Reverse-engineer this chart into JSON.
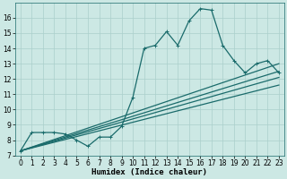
{
  "title": "",
  "xlabel": "Humidex (Indice chaleur)",
  "xlim": [
    -0.5,
    23.5
  ],
  "ylim": [
    7,
    17.0
  ],
  "yticks": [
    7,
    8,
    9,
    10,
    11,
    12,
    13,
    14,
    15,
    16
  ],
  "xticks": [
    0,
    1,
    2,
    3,
    4,
    5,
    6,
    7,
    8,
    9,
    10,
    11,
    12,
    13,
    14,
    15,
    16,
    17,
    18,
    19,
    20,
    21,
    22,
    23
  ],
  "bg_color": "#cce8e4",
  "grid_color": "#aacfcb",
  "line_color": "#1a6b6b",
  "main_line_x": [
    0,
    1,
    2,
    3,
    4,
    5,
    6,
    7,
    8,
    9,
    10,
    11,
    12,
    13,
    14,
    15,
    16,
    17,
    18,
    19,
    20,
    21,
    22,
    23
  ],
  "main_line_y": [
    7.3,
    8.5,
    8.5,
    8.5,
    8.4,
    8.0,
    7.6,
    8.2,
    8.2,
    8.9,
    10.8,
    14.0,
    14.2,
    15.1,
    14.2,
    15.8,
    16.6,
    16.5,
    14.2,
    13.2,
    12.4,
    13.0,
    13.2,
    12.4
  ],
  "diag_lines": [
    {
      "x": [
        0,
        23
      ],
      "y": [
        7.3,
        13.0
      ]
    },
    {
      "x": [
        0,
        23
      ],
      "y": [
        7.3,
        12.5
      ]
    },
    {
      "x": [
        0,
        23
      ],
      "y": [
        7.3,
        12.1
      ]
    },
    {
      "x": [
        0,
        23
      ],
      "y": [
        7.3,
        11.6
      ]
    }
  ],
  "marker_size": 2.5,
  "linewidth": 0.9,
  "tick_fontsize": 5.5,
  "xlabel_fontsize": 6.5
}
